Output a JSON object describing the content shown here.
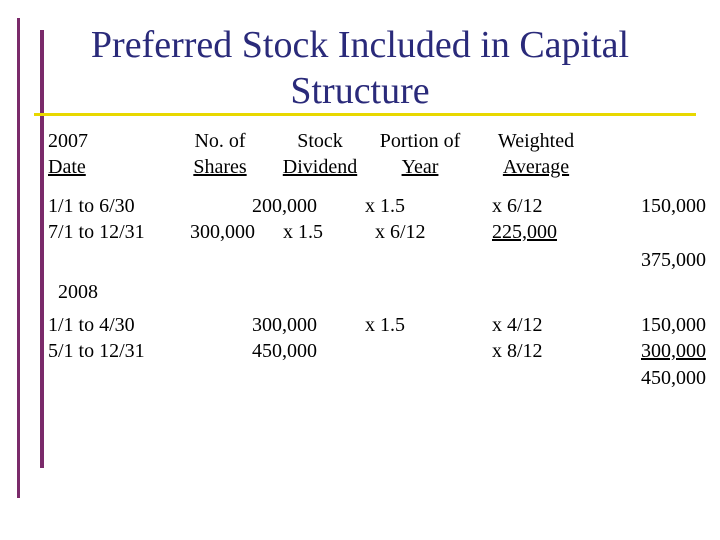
{
  "title": {
    "line1": "Preferred Stock Included in Capital",
    "line2": "Structure"
  },
  "headers": {
    "date": [
      "2007",
      "Date"
    ],
    "shares": [
      "No. of",
      "Shares"
    ],
    "dividend": [
      "Stock",
      "Dividend"
    ],
    "portion": [
      "Portion of",
      "Year"
    ],
    "weighted": [
      "Weighted",
      "Average"
    ]
  },
  "year2007": {
    "row1": {
      "date": "1/1 to 6/30",
      "shares": "200,000",
      "dividend": "x 1.5",
      "portion": "x 6/12",
      "weighted": "150,000"
    },
    "row2": {
      "date": "7/1 to 12/31",
      "shares": "300,000",
      "dividend": "x 1.5",
      "portion": "x 6/12",
      "weighted": "225,000"
    },
    "total": "375,000"
  },
  "year2008": {
    "label": "2008",
    "row1": {
      "date": "1/1 to 4/30",
      "shares": "300,000",
      "dividend": "x 1.5",
      "portion": "x 4/12",
      "weighted": "150,000"
    },
    "row2": {
      "date": "5/1 to 12/31",
      "shares": "450,000",
      "portion": "x 8/12",
      "weighted": "300,000"
    },
    "total": "450,000"
  },
  "colors": {
    "accent_bar": "#7a2a6a",
    "rule": "#e8d800",
    "title": "#2a2a7a"
  }
}
